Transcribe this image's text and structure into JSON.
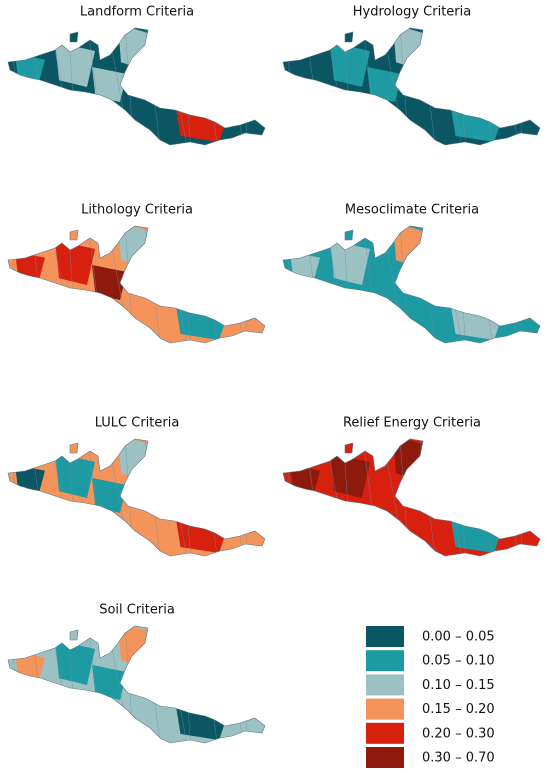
{
  "panels": [
    {
      "title": "Landform Criteria"
    },
    {
      "title": "Hydrology Criteria"
    },
    {
      "title": "Lithology Criteria"
    },
    {
      "title": "Mesoclimate Criteria"
    },
    {
      "title": "LULC Criteria"
    },
    {
      "title": "Relief Energy Criteria"
    },
    {
      "title": "Soil Criteria"
    }
  ],
  "legend": {
    "items": [
      {
        "label": "0.00 – 0.05",
        "color": "#0b5663"
      },
      {
        "label": "0.05 – 0.10",
        "color": "#1e9aa3"
      },
      {
        "label": "0.10 – 0.15",
        "color": "#9cc1c2"
      },
      {
        "label": "0.15 – 0.20",
        "color": "#f4935a"
      },
      {
        "label": "0.20 – 0.30",
        "color": "#d8200f"
      },
      {
        "label": "0.30 – 0.70",
        "color": "#8e1a0e"
      }
    ]
  }
}
